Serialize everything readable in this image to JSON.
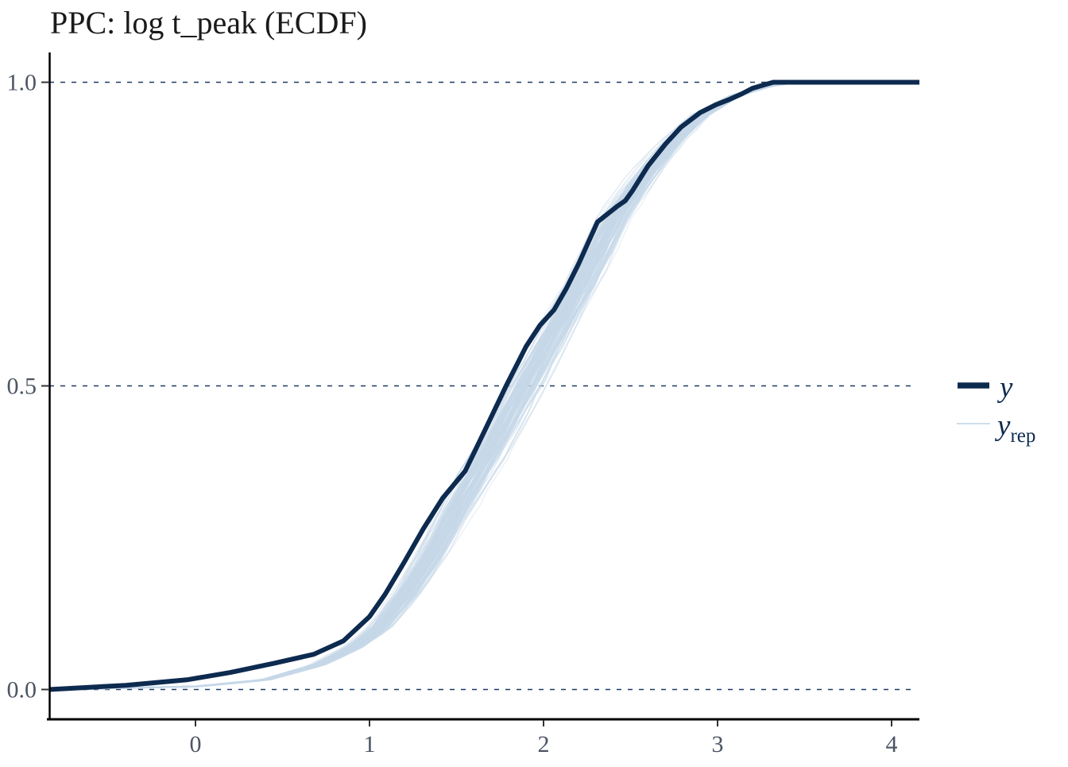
{
  "title": "PPC: log t_peak (ECDF)",
  "colors": {
    "y_line": "#0d2a4f",
    "yrep_line": "#c6d8e8",
    "gridline": "#1b3a62",
    "axis": "#000000",
    "tick_label": "#4d5563",
    "background": "#ffffff"
  },
  "legend": {
    "y_label": "y",
    "yrep_label_base": "y",
    "yrep_label_sub": "rep"
  },
  "chart_data": {
    "type": "line",
    "subtype": "ecdf-posterior-predictive-check",
    "title": "PPC: log t_peak (ECDF)",
    "xlabel": "",
    "ylabel": "",
    "xlim": [
      -0.84,
      4.16
    ],
    "ylim": [
      0,
      1
    ],
    "x_ticks": [
      0,
      1,
      2,
      3,
      4
    ],
    "y_ticks": [
      {
        "value": 0.0,
        "label": "0.0"
      },
      {
        "value": 0.5,
        "label": "0.5"
      },
      {
        "value": 1.0,
        "label": "1.0"
      }
    ],
    "grid": "horizontal dashed lines at y ticks",
    "legend_position": "right",
    "series": [
      {
        "name": "y",
        "role": "observed-ecdf",
        "points": [
          [
            -0.84,
            0.0
          ],
          [
            -0.4,
            0.007
          ],
          [
            -0.05,
            0.016
          ],
          [
            0.2,
            0.028
          ],
          [
            0.45,
            0.043
          ],
          [
            0.68,
            0.058
          ],
          [
            0.85,
            0.08
          ],
          [
            1.0,
            0.12
          ],
          [
            1.09,
            0.157
          ],
          [
            1.2,
            0.21
          ],
          [
            1.31,
            0.265
          ],
          [
            1.42,
            0.315
          ],
          [
            1.55,
            0.36
          ],
          [
            1.66,
            0.425
          ],
          [
            1.785,
            0.5
          ],
          [
            1.9,
            0.565
          ],
          [
            1.98,
            0.6
          ],
          [
            2.06,
            0.625
          ],
          [
            2.13,
            0.66
          ],
          [
            2.2,
            0.7
          ],
          [
            2.31,
            0.77
          ],
          [
            2.42,
            0.795
          ],
          [
            2.47,
            0.805
          ],
          [
            2.51,
            0.821
          ],
          [
            2.6,
            0.862
          ],
          [
            2.7,
            0.898
          ],
          [
            2.79,
            0.926
          ],
          [
            2.9,
            0.95
          ],
          [
            2.99,
            0.963
          ],
          [
            3.07,
            0.972
          ],
          [
            3.14,
            0.981
          ],
          [
            3.2,
            0.99
          ],
          [
            3.27,
            0.996
          ],
          [
            3.32,
            1.0
          ],
          [
            4.16,
            1.0
          ]
        ]
      },
      {
        "name": "y_rep",
        "role": "replicate-ecdf-band",
        "n_rep_lines_rendered": 110,
        "band_center": [
          [
            -0.84,
            0.0
          ],
          [
            0.0,
            0.005
          ],
          [
            0.4,
            0.016
          ],
          [
            0.7,
            0.04
          ],
          [
            0.9,
            0.068
          ],
          [
            1.05,
            0.1
          ],
          [
            1.21,
            0.158
          ],
          [
            1.35,
            0.22
          ],
          [
            1.5,
            0.3
          ],
          [
            1.7,
            0.4
          ],
          [
            1.89,
            0.5
          ],
          [
            2.05,
            0.585
          ],
          [
            2.2,
            0.66
          ],
          [
            2.41,
            0.778
          ],
          [
            2.6,
            0.855
          ],
          [
            2.75,
            0.905
          ],
          [
            2.9,
            0.945
          ],
          [
            3.1,
            0.978
          ],
          [
            3.3,
            0.994
          ],
          [
            3.45,
            1.0
          ],
          [
            4.16,
            1.0
          ]
        ],
        "band_halfwidth_x": 0.1
      }
    ]
  }
}
